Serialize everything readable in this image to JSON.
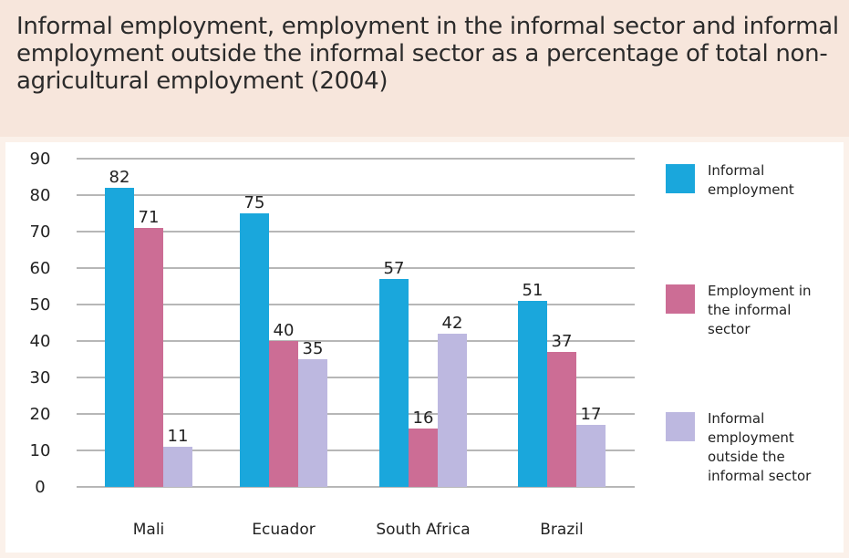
{
  "title": "Informal employment, employment in the informal sector and informal employment outside the informal sector as a percentage of total non-agricultural employment (2004)",
  "chart_data": {
    "type": "bar",
    "title": "Informal employment, employment in the informal sector and informal employment outside the informal sector as a percentage of total non-agricultural employment (2004)",
    "categories": [
      "Mali",
      "Ecuador",
      "South Africa",
      "Brazil"
    ],
    "series": [
      {
        "name": "Informal employment",
        "values": [
          82,
          75,
          57,
          51
        ],
        "color": "#1aa7dc"
      },
      {
        "name": "Employment in the informal sector",
        "values": [
          71,
          40,
          16,
          37
        ],
        "color": "#cc6d95"
      },
      {
        "name": "Informal employment outside the informal sector",
        "values": [
          11,
          35,
          42,
          17
        ],
        "color": "#bdb8e0"
      }
    ],
    "ylim": [
      0,
      90
    ],
    "yticks": [
      0,
      10,
      20,
      30,
      40,
      50,
      60,
      70,
      80,
      90
    ],
    "xlabel": "",
    "ylabel": "",
    "grid": true,
    "legend_position": "right"
  }
}
